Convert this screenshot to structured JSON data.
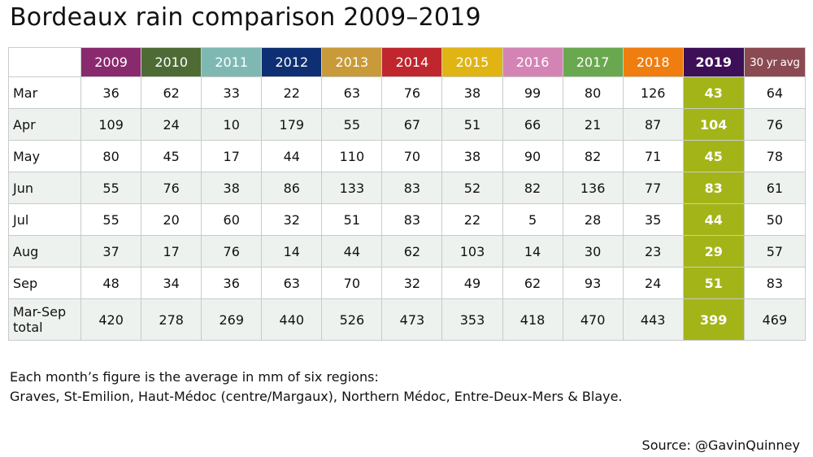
{
  "title": "Bordeaux rain comparison 2009–2019",
  "chart_data": {
    "type": "table",
    "title": "Bordeaux rain comparison 2009–2019",
    "columns": [
      {
        "label": "2009",
        "color": "#8a2a6e"
      },
      {
        "label": "2010",
        "color": "#4e6b35"
      },
      {
        "label": "2011",
        "color": "#7fb8b3"
      },
      {
        "label": "2012",
        "color": "#0e2f73"
      },
      {
        "label": "2013",
        "color": "#c99a3a"
      },
      {
        "label": "2014",
        "color": "#c0262e"
      },
      {
        "label": "2015",
        "color": "#e0b413"
      },
      {
        "label": "2016",
        "color": "#d384b4"
      },
      {
        "label": "2017",
        "color": "#6aa84f"
      },
      {
        "label": "2018",
        "color": "#f07d10"
      },
      {
        "label": "2019",
        "color": "#3d0f57",
        "highlight": true
      },
      {
        "label": "30 yr avg",
        "color": "#8b4a52"
      }
    ],
    "highlight_column_index": 10,
    "highlight_cell_color": "#a3b418",
    "stripe_color": "#eef2ee",
    "rows": [
      {
        "label": "Mar",
        "values": [
          "36",
          "62",
          "33",
          "22",
          "63",
          "76",
          "38",
          "99",
          "80",
          "126",
          "43",
          "64"
        ]
      },
      {
        "label": "Apr",
        "values": [
          "109",
          "24",
          "10",
          "179",
          "55",
          "67",
          "51",
          "66",
          "21",
          "87",
          "104",
          "76"
        ]
      },
      {
        "label": "May",
        "values": [
          "80",
          "45",
          "17",
          "44",
          "110",
          "70",
          "38",
          "90",
          "82",
          "71",
          "45",
          "78"
        ]
      },
      {
        "label": "Jun",
        "values": [
          "55",
          "76",
          "38",
          "86",
          "133",
          "83",
          "52",
          "82",
          "136",
          "77",
          "83",
          "61"
        ]
      },
      {
        "label": "Jul",
        "values": [
          "55",
          "20",
          "60",
          "32",
          "51",
          "83",
          "22",
          "5",
          "28",
          "35",
          "44",
          "50"
        ]
      },
      {
        "label": "Aug",
        "values": [
          "37",
          "17",
          "76",
          "14",
          "44",
          "62",
          "103",
          "14",
          "30",
          "23",
          "29",
          "57"
        ]
      },
      {
        "label": "Sep",
        "values": [
          "48",
          "34",
          "36",
          "63",
          "70",
          "32",
          "49",
          "62",
          "93",
          "24",
          "51",
          "83"
        ]
      },
      {
        "label": "Mar-Sep total",
        "values": [
          "420",
          "278",
          "269",
          "440",
          "526",
          "473",
          "353",
          "418",
          "470",
          "443",
          "399",
          "469"
        ],
        "total": true
      }
    ]
  },
  "note": {
    "line1": "Each month’s figure is the average in mm of six regions:",
    "line2": "Graves, St-Emilion, Haut-Médoc (centre/Margaux), Northern Médoc, Entre-Deux-Mers & Blaye."
  },
  "source": "Source: @GavinQuinney"
}
